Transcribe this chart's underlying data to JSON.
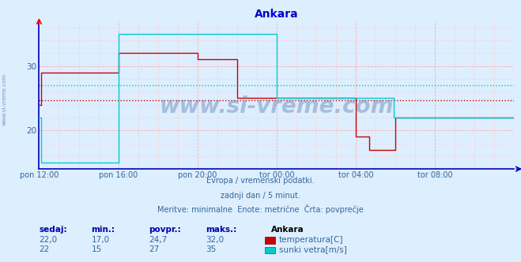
{
  "title": "Ankara",
  "background_color": "#ddeeff",
  "plot_bg_color": "#ddeeff",
  "subtitle_lines": [
    "Evropa / vremenski podatki.",
    "zadnji dan / 5 minut.",
    "Meritve: minimalne  Enote: metrične  Črta: povprečje"
  ],
  "xlabel_ticks": [
    "pon 12:00",
    "pon 16:00",
    "pon 20:00",
    "tor 00:00",
    "tor 04:00",
    "tor 08:00"
  ],
  "x_tick_positions": [
    0,
    48,
    96,
    144,
    192,
    240
  ],
  "temp_color": "#cc0000",
  "wind_color": "#00cccc",
  "avg_temp": 24.7,
  "avg_wind": 27.0,
  "temp_data_x": [
    0,
    1,
    48,
    96,
    120,
    144,
    192,
    200,
    216,
    240,
    288
  ],
  "temp_data_y": [
    24,
    29,
    32,
    31,
    25,
    25,
    19,
    17,
    22,
    22,
    22
  ],
  "wind_data_x": [
    0,
    1,
    48,
    96,
    144,
    192,
    215,
    240,
    288
  ],
  "wind_data_y": [
    22,
    15,
    35,
    35,
    25,
    25,
    22,
    22,
    22
  ],
  "ylim": [
    14,
    37
  ],
  "yticks": [
    20,
    30
  ],
  "xlim": [
    0,
    288
  ],
  "watermark": "www.si-vreme.com",
  "station_label": "Ankara",
  "col_headers": [
    "sedaj:",
    "min.:",
    "povpr.:",
    "maks.:"
  ],
  "row1_vals": [
    "22,0",
    "17,0",
    "24,7",
    "32,0"
  ],
  "row2_vals": [
    "22",
    "15",
    "27",
    "35"
  ],
  "legend": [
    {
      "color": "#cc0000",
      "label": "temperatura[C]"
    },
    {
      "color": "#00cccc",
      "label": "sunki vetra[m/s]"
    }
  ]
}
